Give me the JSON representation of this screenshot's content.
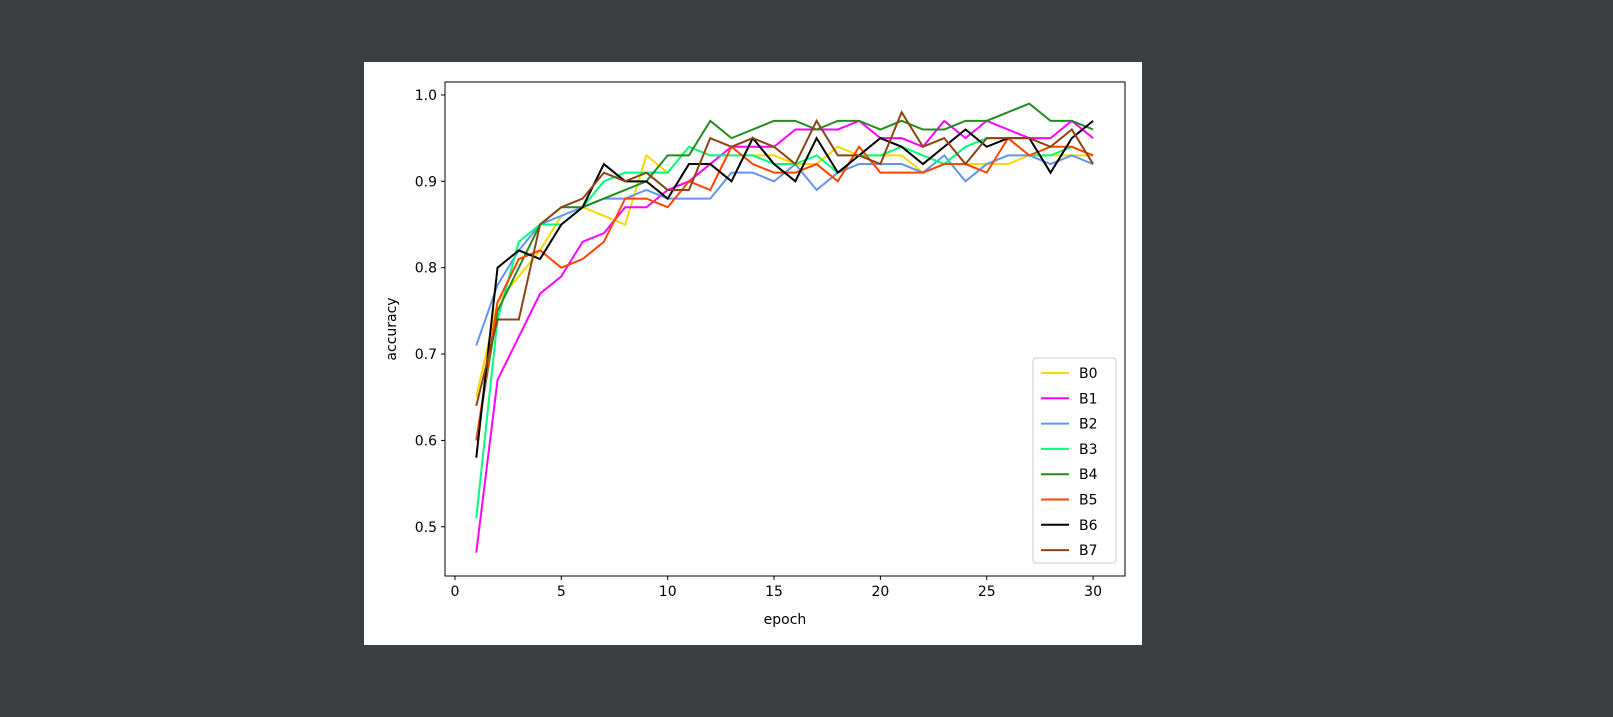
{
  "chart_data": {
    "type": "line",
    "title": "",
    "xlabel": "epoch",
    "ylabel": "accuracy",
    "xlim": [
      -0.47,
      31.5
    ],
    "ylim": [
      0.443,
      1.015
    ],
    "xticks": [
      0,
      5,
      10,
      15,
      20,
      25,
      30
    ],
    "yticks": [
      0.5,
      0.6,
      0.7,
      0.8,
      0.9,
      1.0
    ],
    "ytick_labels": [
      "0.5",
      "0.6",
      "0.7",
      "0.8",
      "0.9",
      "1.0"
    ],
    "grid": false,
    "legend_placement": "lower-right",
    "x": [
      1,
      2,
      3,
      4,
      5,
      6,
      7,
      8,
      9,
      10,
      11,
      12,
      13,
      14,
      15,
      16,
      17,
      18,
      19,
      20,
      21,
      22,
      23,
      24,
      25,
      26,
      27,
      28,
      29,
      30
    ],
    "series": [
      {
        "name": "B0",
        "color": "#ffd700",
        "values": [
          0.65,
          0.76,
          0.79,
          0.82,
          0.86,
          0.87,
          0.86,
          0.85,
          0.93,
          0.91,
          0.94,
          0.93,
          0.93,
          0.93,
          0.93,
          0.92,
          0.92,
          0.94,
          0.93,
          0.93,
          0.93,
          0.91,
          0.92,
          0.92,
          0.92,
          0.92,
          0.93,
          0.93,
          0.93,
          0.93
        ]
      },
      {
        "name": "B1",
        "color": "#ff00ff",
        "values": [
          0.47,
          0.67,
          0.72,
          0.77,
          0.79,
          0.83,
          0.84,
          0.87,
          0.87,
          0.89,
          0.9,
          0.92,
          0.94,
          0.94,
          0.94,
          0.96,
          0.96,
          0.96,
          0.97,
          0.95,
          0.95,
          0.94,
          0.97,
          0.95,
          0.97,
          0.96,
          0.95,
          0.95,
          0.97,
          0.95
        ]
      },
      {
        "name": "B2",
        "color": "#6495ed",
        "values": [
          0.71,
          0.78,
          0.82,
          0.85,
          0.86,
          0.87,
          0.88,
          0.88,
          0.89,
          0.88,
          0.88,
          0.88,
          0.91,
          0.91,
          0.9,
          0.92,
          0.89,
          0.91,
          0.92,
          0.92,
          0.92,
          0.91,
          0.93,
          0.9,
          0.92,
          0.93,
          0.93,
          0.92,
          0.93,
          0.92
        ]
      },
      {
        "name": "B3",
        "color": "#00ff7f",
        "values": [
          0.51,
          0.74,
          0.83,
          0.85,
          0.85,
          0.87,
          0.9,
          0.91,
          0.91,
          0.91,
          0.94,
          0.93,
          0.93,
          0.93,
          0.92,
          0.92,
          0.93,
          0.91,
          0.93,
          0.93,
          0.94,
          0.93,
          0.92,
          0.94,
          0.95,
          0.95,
          0.93,
          0.93,
          0.94,
          0.93
        ]
      },
      {
        "name": "B4",
        "color": "#228b22",
        "values": [
          0.6,
          0.75,
          0.8,
          0.85,
          0.87,
          0.87,
          0.88,
          0.89,
          0.9,
          0.93,
          0.93,
          0.97,
          0.95,
          0.96,
          0.97,
          0.97,
          0.96,
          0.97,
          0.97,
          0.96,
          0.97,
          0.96,
          0.96,
          0.97,
          0.97,
          0.98,
          0.99,
          0.97,
          0.97,
          0.96
        ]
      },
      {
        "name": "B5",
        "color": "#ff4500",
        "values": [
          0.6,
          0.76,
          0.81,
          0.82,
          0.8,
          0.81,
          0.83,
          0.88,
          0.88,
          0.87,
          0.9,
          0.89,
          0.94,
          0.92,
          0.91,
          0.91,
          0.92,
          0.9,
          0.94,
          0.91,
          0.91,
          0.91,
          0.92,
          0.92,
          0.91,
          0.95,
          0.93,
          0.94,
          0.94,
          0.93
        ]
      },
      {
        "name": "B6",
        "color": "#000000",
        "values": [
          0.58,
          0.8,
          0.82,
          0.81,
          0.85,
          0.87,
          0.92,
          0.9,
          0.9,
          0.88,
          0.92,
          0.92,
          0.9,
          0.95,
          0.92,
          0.9,
          0.95,
          0.91,
          0.93,
          0.95,
          0.94,
          0.92,
          0.94,
          0.96,
          0.94,
          0.95,
          0.95,
          0.91,
          0.95,
          0.97
        ]
      },
      {
        "name": "B7",
        "color": "#8b4513",
        "values": [
          0.64,
          0.74,
          0.74,
          0.85,
          0.87,
          0.88,
          0.91,
          0.9,
          0.91,
          0.89,
          0.89,
          0.95,
          0.94,
          0.95,
          0.94,
          0.92,
          0.97,
          0.93,
          0.93,
          0.92,
          0.98,
          0.94,
          0.95,
          0.92,
          0.95,
          0.95,
          0.95,
          0.94,
          0.96,
          0.92
        ]
      }
    ]
  }
}
